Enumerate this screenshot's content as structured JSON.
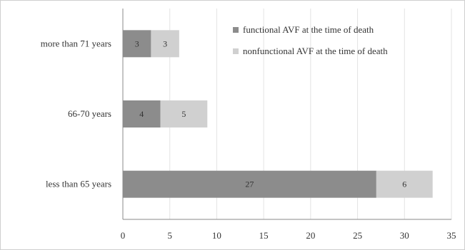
{
  "chart_data": {
    "type": "bar",
    "orientation": "horizontal",
    "stacked": true,
    "categories": [
      "less than 65 years",
      "66-70 years",
      "more than 71 years"
    ],
    "series": [
      {
        "name": "functional AVF at the time of death",
        "values": [
          27,
          4,
          3
        ],
        "color": "#8c8c8c"
      },
      {
        "name": "nonfunctional AVF at the time of death",
        "values": [
          6,
          5,
          3
        ],
        "color": "#d0d0d0"
      }
    ],
    "xlim": [
      0,
      35
    ],
    "xticks": [
      "0",
      "5",
      "10",
      "15",
      "20",
      "25",
      "30",
      "35"
    ],
    "grid": "vertical",
    "legend": "top-right",
    "title": "",
    "xlabel": "",
    "ylabel": ""
  }
}
